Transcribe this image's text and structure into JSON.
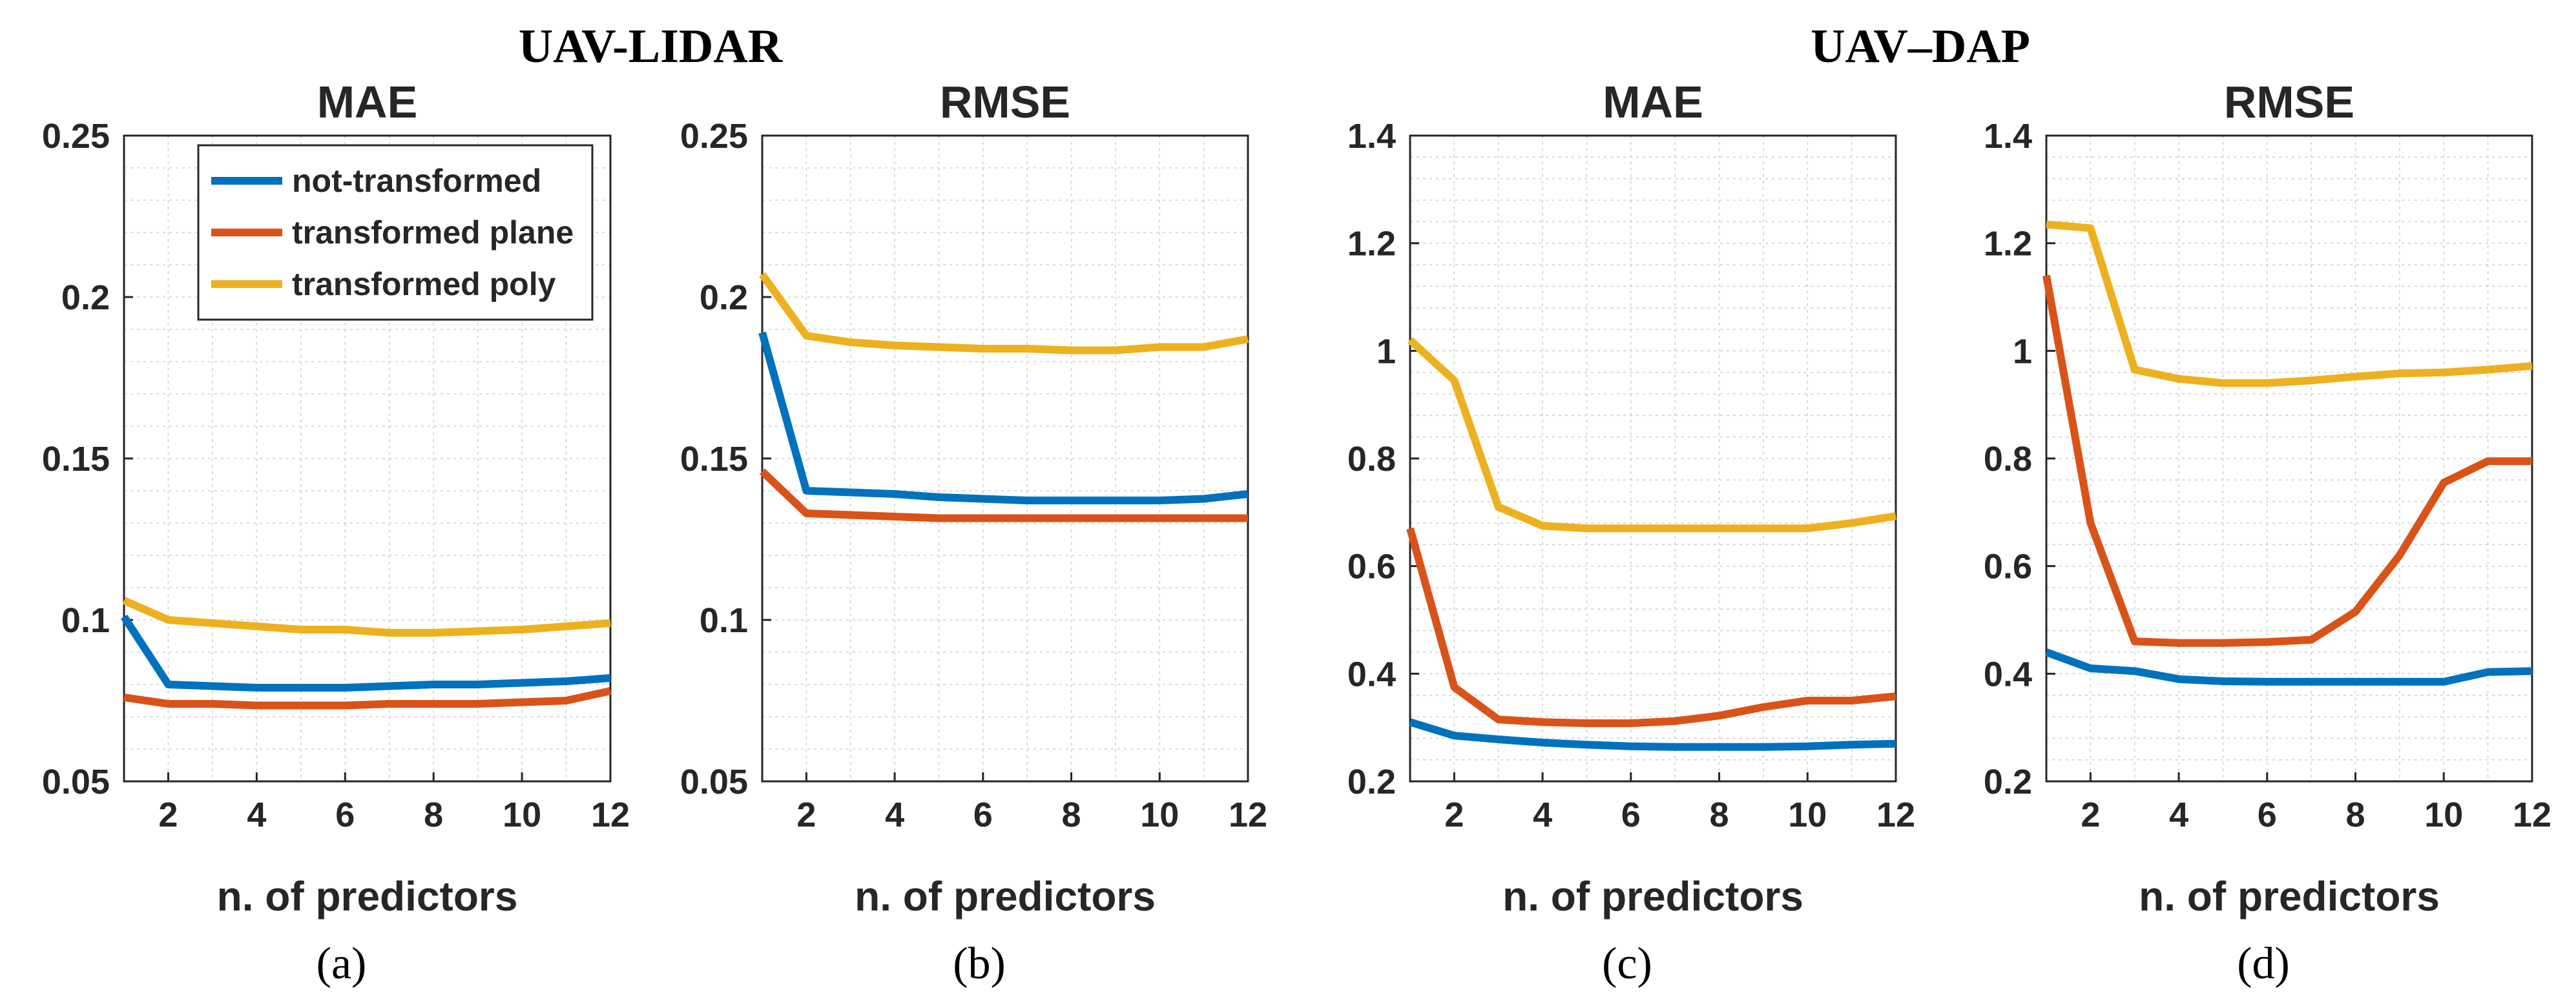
{
  "figure": {
    "group_titles": [
      "UAV-LIDAR",
      "UAV–DAP"
    ],
    "colors": {
      "not_transformed": "#0072BD",
      "transformed_plane": "#D95319",
      "transformed_poly": "#EDB120",
      "grid": "#d0d0d0",
      "axis": "#262626"
    }
  },
  "chart_data": [
    {
      "type": "line",
      "group": "UAV-LIDAR",
      "panel_label": "(a)",
      "title": "MAE",
      "xlabel": "n. of predictors",
      "ylabel": "",
      "x": [
        1,
        2,
        3,
        4,
        5,
        6,
        7,
        8,
        9,
        10,
        11,
        12
      ],
      "xlim": [
        1,
        12
      ],
      "ylim": [
        0.05,
        0.25
      ],
      "xticks": [
        2,
        4,
        6,
        8,
        10,
        12
      ],
      "yticks": [
        0.05,
        0.1,
        0.15,
        0.2,
        0.25
      ],
      "ytick_labels": [
        "0.05",
        "0.1",
        "0.15",
        "0.2",
        "0.25"
      ],
      "grid": true,
      "legend": {
        "location": "top-left",
        "entries": [
          "not-transformed",
          "transformed plane",
          "transformed poly"
        ]
      },
      "series": [
        {
          "name": "not-transformed",
          "color": "#0072BD",
          "values": [
            0.101,
            0.08,
            0.0795,
            0.079,
            0.079,
            0.079,
            0.0795,
            0.08,
            0.08,
            0.0805,
            0.081,
            0.082
          ]
        },
        {
          "name": "transformed plane",
          "color": "#D95319",
          "values": [
            0.076,
            0.074,
            0.074,
            0.0735,
            0.0735,
            0.0735,
            0.074,
            0.074,
            0.074,
            0.0745,
            0.075,
            0.078
          ]
        },
        {
          "name": "transformed poly",
          "color": "#EDB120",
          "values": [
            0.106,
            0.1,
            0.099,
            0.098,
            0.097,
            0.097,
            0.096,
            0.096,
            0.0965,
            0.097,
            0.098,
            0.099
          ]
        }
      ]
    },
    {
      "type": "line",
      "group": "UAV-LIDAR",
      "panel_label": "(b)",
      "title": "RMSE",
      "xlabel": "n. of predictors",
      "ylabel": "",
      "x": [
        1,
        2,
        3,
        4,
        5,
        6,
        7,
        8,
        9,
        10,
        11,
        12
      ],
      "xlim": [
        1,
        12
      ],
      "ylim": [
        0.05,
        0.25
      ],
      "xticks": [
        2,
        4,
        6,
        8,
        10,
        12
      ],
      "yticks": [
        0.05,
        0.1,
        0.15,
        0.2,
        0.25
      ],
      "ytick_labels": [
        "0.05",
        "0.1",
        "0.15",
        "0.2",
        "0.25"
      ],
      "grid": true,
      "series": [
        {
          "name": "not-transformed",
          "color": "#0072BD",
          "values": [
            0.189,
            0.14,
            0.1395,
            0.139,
            0.138,
            0.1375,
            0.137,
            0.137,
            0.137,
            0.137,
            0.1375,
            0.139
          ]
        },
        {
          "name": "transformed plane",
          "color": "#D95319",
          "values": [
            0.146,
            0.133,
            0.1325,
            0.132,
            0.1315,
            0.1315,
            0.1315,
            0.1315,
            0.1315,
            0.1315,
            0.1315,
            0.1315
          ]
        },
        {
          "name": "transformed poly",
          "color": "#EDB120",
          "values": [
            0.207,
            0.188,
            0.186,
            0.185,
            0.1845,
            0.184,
            0.184,
            0.1835,
            0.1835,
            0.1845,
            0.1845,
            0.187
          ]
        }
      ]
    },
    {
      "type": "line",
      "group": "UAV–DAP",
      "panel_label": "(c)",
      "title": "MAE",
      "xlabel": "n. of predictors",
      "ylabel": "",
      "x": [
        1,
        2,
        3,
        4,
        5,
        6,
        7,
        8,
        9,
        10,
        11,
        12
      ],
      "xlim": [
        1,
        12
      ],
      "ylim": [
        0.2,
        1.4
      ],
      "xticks": [
        2,
        4,
        6,
        8,
        10,
        12
      ],
      "yticks": [
        0.2,
        0.4,
        0.6,
        0.8,
        1.0,
        1.2,
        1.4
      ],
      "ytick_labels": [
        "0.2",
        "0.4",
        "0.6",
        "0.8",
        "1",
        "1.2",
        "1.4"
      ],
      "grid": true,
      "series": [
        {
          "name": "not-transformed",
          "color": "#0072BD",
          "values": [
            0.31,
            0.285,
            0.278,
            0.272,
            0.268,
            0.265,
            0.264,
            0.264,
            0.264,
            0.265,
            0.268,
            0.27
          ]
        },
        {
          "name": "transformed plane",
          "color": "#D95319",
          "values": [
            0.67,
            0.375,
            0.315,
            0.31,
            0.308,
            0.308,
            0.312,
            0.322,
            0.338,
            0.35,
            0.35,
            0.358
          ]
        },
        {
          "name": "transformed poly",
          "color": "#EDB120",
          "values": [
            1.02,
            0.945,
            0.71,
            0.675,
            0.67,
            0.67,
            0.67,
            0.67,
            0.67,
            0.67,
            0.68,
            0.693
          ]
        }
      ]
    },
    {
      "type": "line",
      "group": "UAV–DAP",
      "panel_label": "(d)",
      "title": "RMSE",
      "xlabel": "n. of predictors",
      "ylabel": "",
      "x": [
        1,
        2,
        3,
        4,
        5,
        6,
        7,
        8,
        9,
        10,
        11,
        12
      ],
      "xlim": [
        1,
        12
      ],
      "ylim": [
        0.2,
        1.4
      ],
      "xticks": [
        2,
        4,
        6,
        8,
        10,
        12
      ],
      "yticks": [
        0.2,
        0.4,
        0.6,
        0.8,
        1.0,
        1.2,
        1.4
      ],
      "ytick_labels": [
        "0.2",
        "0.4",
        "0.6",
        "0.8",
        "1",
        "1.2",
        "1.4"
      ],
      "grid": true,
      "series": [
        {
          "name": "not-transformed",
          "color": "#0072BD",
          "values": [
            0.44,
            0.41,
            0.405,
            0.39,
            0.386,
            0.385,
            0.385,
            0.385,
            0.385,
            0.385,
            0.403,
            0.405
          ]
        },
        {
          "name": "transformed plane",
          "color": "#D95319",
          "values": [
            1.14,
            0.68,
            0.46,
            0.457,
            0.457,
            0.459,
            0.463,
            0.515,
            0.62,
            0.755,
            0.795,
            0.795
          ]
        },
        {
          "name": "transformed poly",
          "color": "#EDB120",
          "values": [
            1.235,
            1.228,
            0.965,
            0.948,
            0.94,
            0.94,
            0.945,
            0.952,
            0.958,
            0.96,
            0.965,
            0.972
          ]
        }
      ]
    }
  ]
}
